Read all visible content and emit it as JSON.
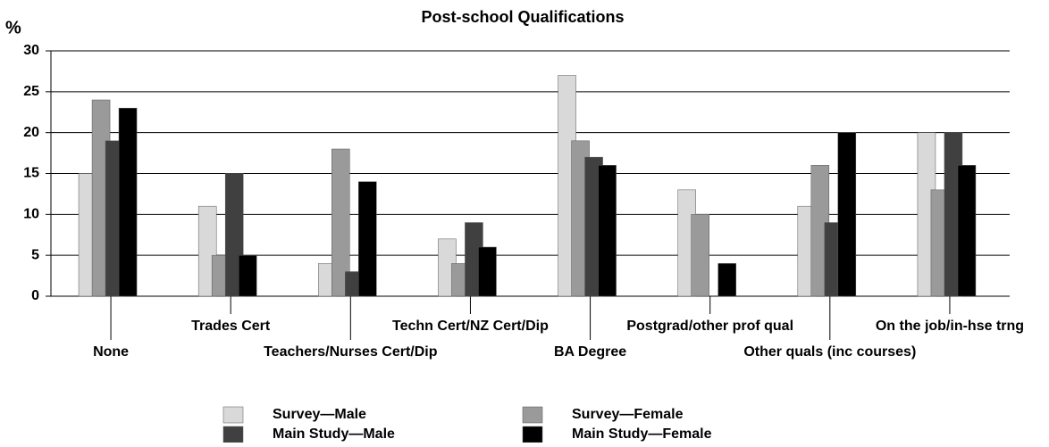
{
  "chart_data": {
    "type": "bar",
    "title": "Post-school Qualifications",
    "ylabel": "%",
    "categories": [
      "None",
      "Trades Cert",
      "Teachers/Nurses Cert/Dip",
      "Techn Cert/NZ Cert/Dip",
      "BA Degree",
      "Postgrad/other prof qual",
      "Other quals (inc courses)",
      "On the job/in-hse trng"
    ],
    "series": [
      {
        "name": "Survey—Male",
        "color": "#d9d9d9",
        "values": [
          15,
          11,
          4,
          7,
          27,
          13,
          11,
          20
        ]
      },
      {
        "name": "Survey—Female",
        "color": "#9a9a9a",
        "values": [
          24,
          5,
          18,
          4,
          19,
          10,
          16,
          13
        ]
      },
      {
        "name": "Main Study—Male",
        "color": "#404040",
        "values": [
          19,
          15,
          3,
          9,
          17,
          0,
          9,
          20
        ]
      },
      {
        "name": "Main Study—Female",
        "color": "#000000",
        "values": [
          23,
          5,
          14,
          6,
          16,
          4,
          20,
          16
        ]
      }
    ],
    "ylim": [
      0,
      30
    ],
    "yticks": [
      0,
      5,
      10,
      15,
      20,
      25,
      30
    ],
    "grid": true,
    "legend": "bottom"
  }
}
